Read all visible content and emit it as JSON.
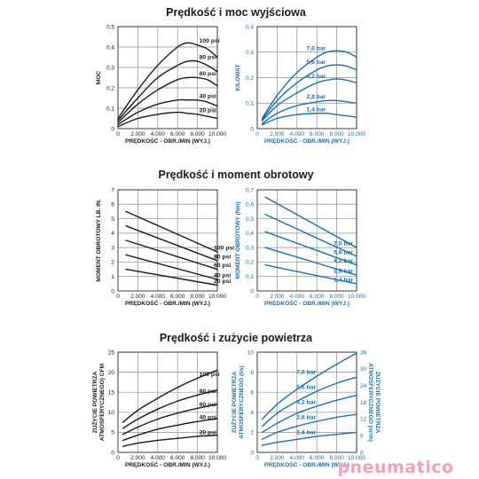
{
  "titles": {
    "power": "Prędkość i moc wyjściowa",
    "torque": "Prędkość i moment obrotowy",
    "air": "Prędkość i zużycie powietrza"
  },
  "brand": {
    "text": "pneumatico",
    "color": "#f3a2b5"
  },
  "colors": {
    "imperial": "#1a1a1a",
    "metric": "#1f6fa8"
  },
  "chart_data": [
    {
      "id": "power-imperial",
      "type": "line",
      "title": "",
      "xlabel": "PRĘDKOŚĆ - OBR./MIN (WYJ.)",
      "ylabel": "MOC",
      "xlim": [
        0,
        10000
      ],
      "ylim": [
        0,
        0.5
      ],
      "xticks": [
        0,
        2000,
        4000,
        6000,
        8000,
        10000
      ],
      "xtick_labels": [
        "0",
        "2.000",
        "4.000",
        "6.000",
        "8.000",
        "10.000"
      ],
      "yticks": [
        0,
        0.1,
        0.2,
        0.3,
        0.4,
        0.5
      ],
      "ytick_labels": [
        "0",
        "0,1",
        "0,2",
        "0,3",
        "0,4",
        "0,5"
      ],
      "grid": true,
      "series": [
        {
          "name": "100 psi",
          "x": [
            0,
            2000,
            4000,
            6000,
            7000,
            8000,
            9000,
            10000
          ],
          "y": [
            0.05,
            0.19,
            0.31,
            0.4,
            0.42,
            0.41,
            0.39,
            0.35
          ]
        },
        {
          "name": "80 psi",
          "x": [
            0,
            2000,
            4000,
            6000,
            7000,
            8000,
            9000,
            10000
          ],
          "y": [
            0.04,
            0.15,
            0.25,
            0.31,
            0.33,
            0.33,
            0.31,
            0.28
          ]
        },
        {
          "name": "60 psi",
          "x": [
            0,
            2000,
            4000,
            6000,
            7000,
            8000,
            9000,
            10000
          ],
          "y": [
            0.03,
            0.12,
            0.19,
            0.24,
            0.25,
            0.25,
            0.24,
            0.21
          ]
        },
        {
          "name": "40 psi",
          "x": [
            0,
            2000,
            4000,
            6000,
            7000,
            8000,
            9000,
            10000
          ],
          "y": [
            0.02,
            0.08,
            0.12,
            0.14,
            0.14,
            0.14,
            0.13,
            0.11
          ]
        },
        {
          "name": "20 psi",
          "x": [
            0,
            2000,
            4000,
            6000,
            7000,
            8000,
            9000,
            10000
          ],
          "y": [
            0.01,
            0.05,
            0.07,
            0.08,
            0.075,
            0.07,
            0.06,
            0.05
          ]
        }
      ]
    },
    {
      "id": "power-metric",
      "type": "line",
      "title": "",
      "xlabel": "PRĘDKOŚĆ - OBR./MIN (WYJ.)",
      "ylabel": "KILOWAT",
      "xlim": [
        0,
        10000
      ],
      "ylim": [
        0,
        0.4
      ],
      "xticks": [
        0,
        2000,
        4000,
        6000,
        8000,
        10000
      ],
      "xtick_labels": [
        "0",
        "2.000",
        "4.000",
        "6.000",
        "8.000",
        "10.000"
      ],
      "yticks": [
        0,
        0.1,
        0.2,
        0.3,
        0.4
      ],
      "ytick_labels": [
        "0",
        "0,1",
        "0,2",
        "0,3",
        "0,4"
      ],
      "grid": true,
      "series": [
        {
          "name": "7,0 bar",
          "x": [
            500,
            2000,
            4000,
            6000,
            7000,
            8000,
            9000,
            10000
          ],
          "y": [
            0.04,
            0.13,
            0.22,
            0.28,
            0.3,
            0.305,
            0.3,
            0.28
          ]
        },
        {
          "name": "5,6 bar",
          "x": [
            500,
            2000,
            4000,
            6000,
            7000,
            8000,
            9000,
            10000
          ],
          "y": [
            0.035,
            0.11,
            0.18,
            0.23,
            0.245,
            0.25,
            0.245,
            0.23
          ]
        },
        {
          "name": "4,2 bar",
          "x": [
            500,
            2000,
            4000,
            6000,
            7000,
            8000,
            9000,
            10000
          ],
          "y": [
            0.03,
            0.09,
            0.14,
            0.18,
            0.19,
            0.195,
            0.19,
            0.18
          ]
        },
        {
          "name": "2,8 bar",
          "x": [
            500,
            2000,
            4000,
            6000,
            7000,
            8000,
            9000,
            10000
          ],
          "y": [
            0.02,
            0.06,
            0.09,
            0.105,
            0.11,
            0.11,
            0.105,
            0.1
          ]
        },
        {
          "name": "1,4 bar",
          "x": [
            500,
            2000,
            4000,
            6000,
            7000,
            8000,
            9000,
            10000
          ],
          "y": [
            0.015,
            0.04,
            0.055,
            0.06,
            0.06,
            0.055,
            0.05,
            0.045
          ]
        }
      ]
    },
    {
      "id": "torque-imperial",
      "type": "line",
      "title": "",
      "xlabel": "PRĘDKOŚĆ - OBR./MIN (WYJ.)",
      "ylabel": "MOMENT OBROTOWY LB. IN.",
      "xlim": [
        0,
        10000
      ],
      "ylim": [
        0,
        7
      ],
      "xticks": [
        0,
        2000,
        4000,
        6000,
        8000,
        10000
      ],
      "xtick_labels": [
        "0",
        "2.000",
        "4.000",
        "6.000",
        "8.000",
        "10.000"
      ],
      "yticks": [
        0,
        1,
        2,
        3,
        4,
        5,
        6,
        7
      ],
      "ytick_labels": [
        "0",
        "1",
        "2",
        "3",
        "4",
        "5",
        "6",
        "7"
      ],
      "grid": true,
      "series": [
        {
          "name": "100 psi",
          "x": [
            800,
            10000
          ],
          "y": [
            5.5,
            2.7
          ]
        },
        {
          "name": "80 psi",
          "x": [
            800,
            10000
          ],
          "y": [
            4.5,
            2.1
          ]
        },
        {
          "name": "60 psi",
          "x": [
            800,
            10000
          ],
          "y": [
            3.5,
            1.5
          ]
        },
        {
          "name": "40 psi",
          "x": [
            800,
            10000
          ],
          "y": [
            2.5,
            0.8
          ]
        },
        {
          "name": "20 psi",
          "x": [
            800,
            10000
          ],
          "y": [
            1.5,
            0.4
          ]
        }
      ]
    },
    {
      "id": "torque-metric",
      "type": "line",
      "title": "",
      "xlabel": "PRĘDKOŚĆ - OBR./MIN (WYJ.)",
      "ylabel": "MOMENT OBROTOWY (Nm)",
      "xlim": [
        0,
        10000
      ],
      "ylim": [
        0,
        0.7
      ],
      "xticks": [
        0,
        2000,
        4000,
        6000,
        8000,
        10000
      ],
      "xtick_labels": [
        "0",
        "2.000",
        "4.000",
        "6.000",
        "8.000",
        "10.000"
      ],
      "yticks": [
        0,
        0.1,
        0.2,
        0.3,
        0.4,
        0.5,
        0.6,
        0.7
      ],
      "ytick_labels": [
        "0",
        "0,1",
        "0,2",
        "0,3",
        "0,4",
        "0,5",
        "0,6",
        "0,7"
      ],
      "grid": true,
      "series": [
        {
          "name": "7,0 bar",
          "x": [
            800,
            10000
          ],
          "y": [
            0.65,
            0.3
          ]
        },
        {
          "name": "5,6 bar",
          "x": [
            800,
            10000
          ],
          "y": [
            0.53,
            0.24
          ]
        },
        {
          "name": "4,2 bar",
          "x": [
            800,
            10000
          ],
          "y": [
            0.41,
            0.18
          ]
        },
        {
          "name": "2,8 bar",
          "x": [
            800,
            10000
          ],
          "y": [
            0.3,
            0.11
          ]
        },
        {
          "name": "1,4 bar",
          "x": [
            800,
            10000
          ],
          "y": [
            0.18,
            0.05
          ]
        }
      ]
    },
    {
      "id": "air-imperial",
      "type": "line",
      "title": "",
      "xlabel": "PRĘDKOŚĆ - OBR./MIN (WYJ.)",
      "ylabel": "ZUŻYCIE POWIETRZA ATMOSFERYCZNEGO) CFM",
      "xlim": [
        0,
        10000
      ],
      "ylim": [
        0,
        25
      ],
      "xticks": [
        0,
        2000,
        4000,
        6000,
        8000,
        10000
      ],
      "xtick_labels": [
        "0",
        "2.000",
        "4.000",
        "6.000",
        "8.000",
        "10.000"
      ],
      "yticks": [
        0,
        5,
        10,
        15,
        20,
        25
      ],
      "ytick_labels": [
        "0",
        "5",
        "10",
        "15",
        "20",
        "25"
      ],
      "grid": true,
      "series": [
        {
          "name": "100 psi",
          "x": [
            500,
            2000,
            4000,
            6000,
            8000,
            10000
          ],
          "y": [
            7.5,
            10.5,
            13.5,
            16.2,
            18.5,
            20.5
          ]
        },
        {
          "name": "80 psi",
          "x": [
            500,
            2000,
            4000,
            6000,
            8000,
            10000
          ],
          "y": [
            6,
            8.3,
            10.8,
            12.8,
            14.3,
            15.5
          ]
        },
        {
          "name": "60 psi",
          "x": [
            500,
            2000,
            4000,
            6000,
            8000,
            10000
          ],
          "y": [
            4.5,
            6.3,
            8.3,
            9.8,
            11,
            12
          ]
        },
        {
          "name": "40 psi",
          "x": [
            500,
            2000,
            4000,
            6000,
            8000,
            10000
          ],
          "y": [
            3,
            4.3,
            5.8,
            6.8,
            7.7,
            8.4
          ]
        },
        {
          "name": "20 psi",
          "x": [
            500,
            2000,
            4000,
            6000,
            8000,
            10000
          ],
          "y": [
            1.5,
            2.3,
            3,
            3.5,
            4,
            4.3
          ]
        }
      ]
    },
    {
      "id": "air-metric",
      "type": "line",
      "title": "",
      "xlabel": "PRĘDKOŚĆ - OBR./MIN (WYJ.)",
      "ylabel": "ZUŻYCIE POWIETRZA ATMOSFERYCZNEGO (l/s)",
      "ylabel_right": "ZUŻYCIE POWIETRZA ATMOSFERYCZNEGO (m³/h)",
      "xlim": [
        0,
        10000
      ],
      "ylim": [
        0,
        10
      ],
      "ylim_right": [
        0,
        36
      ],
      "xticks": [
        0,
        2000,
        4000,
        6000,
        8000,
        10000
      ],
      "xtick_labels": [
        "0",
        "2.000",
        "4.000",
        "6.000",
        "8.000",
        "10.000"
      ],
      "yticks": [
        0,
        2,
        4,
        6,
        8,
        10
      ],
      "ytick_labels": [
        "0",
        "2",
        "4",
        "6",
        "8",
        "10"
      ],
      "yticks_right": [
        0,
        6,
        12,
        18,
        24,
        30,
        36
      ],
      "ytick_labels_right": [
        "0",
        "6",
        "12",
        "18",
        "24",
        "30",
        "36"
      ],
      "grid": true,
      "series": [
        {
          "name": "7,0 bar",
          "x": [
            500,
            2000,
            4000,
            6000,
            8000,
            10000
          ],
          "y": [
            3.3,
            4.8,
            6.3,
            7.6,
            8.8,
            9.9
          ]
        },
        {
          "name": "5,6 bar",
          "x": [
            500,
            2000,
            4000,
            6000,
            8000,
            10000
          ],
          "y": [
            2.6,
            3.9,
            5.1,
            6.1,
            6.9,
            7.5
          ]
        },
        {
          "name": "4,2 bar",
          "x": [
            500,
            2000,
            4000,
            6000,
            8000,
            10000
          ],
          "y": [
            2,
            2.9,
            3.9,
            4.6,
            5.2,
            5.7
          ]
        },
        {
          "name": "2,8 bar",
          "x": [
            500,
            2000,
            4000,
            6000,
            8000,
            10000
          ],
          "y": [
            1.3,
            2,
            2.6,
            3.1,
            3.5,
            3.8
          ]
        },
        {
          "name": "1,4 bar",
          "x": [
            500,
            2000,
            4000,
            6000,
            8000,
            10000
          ],
          "y": [
            0.7,
            1,
            1.3,
            1.6,
            1.8,
            2
          ]
        }
      ]
    }
  ]
}
